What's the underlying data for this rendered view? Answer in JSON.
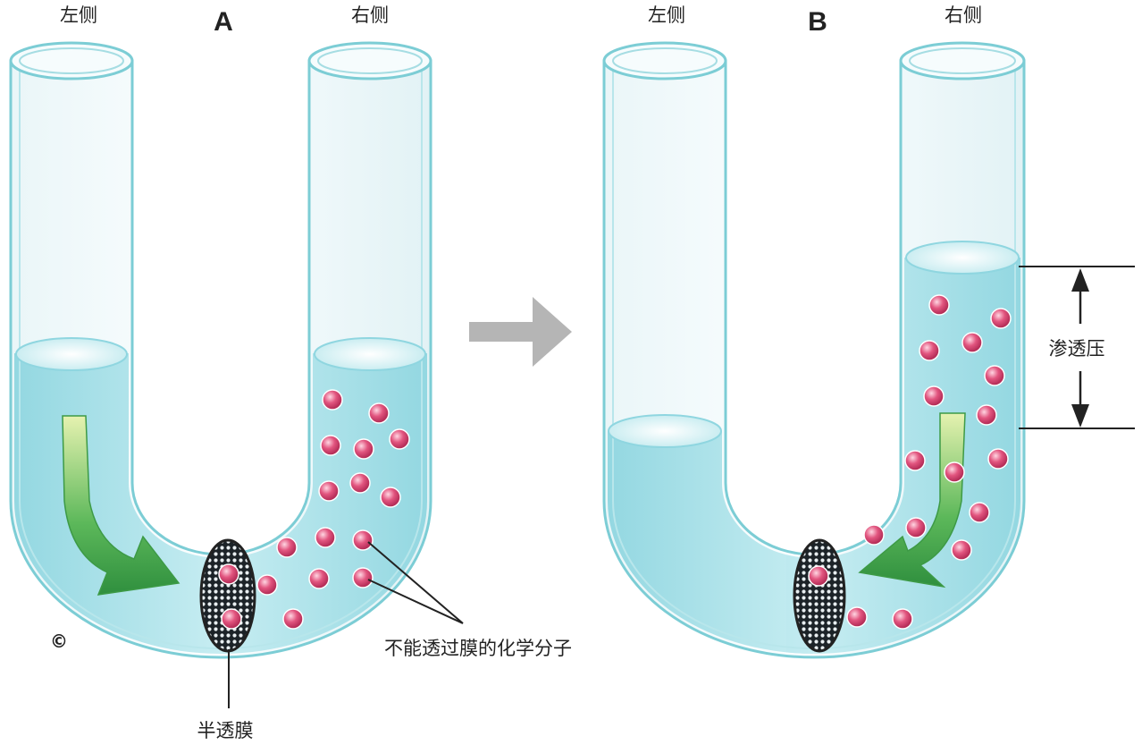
{
  "panel_a": {
    "letter": "A",
    "left_label": "左侧",
    "right_label": "右侧",
    "membrane_label": "半透膜",
    "molecule_label": "不能透过膜的化学分子",
    "copyright_mark": "©"
  },
  "panel_b": {
    "letter": "B",
    "left_label": "左侧",
    "right_label": "右侧",
    "pressure_label": "渗透压"
  },
  "colors": {
    "water": "#9fdde6",
    "tube_outline": "#6cc6cf",
    "molecule": "#e0507a",
    "arrow_green": "#3aa84a",
    "transition_arrow": "#b5b5b5"
  }
}
